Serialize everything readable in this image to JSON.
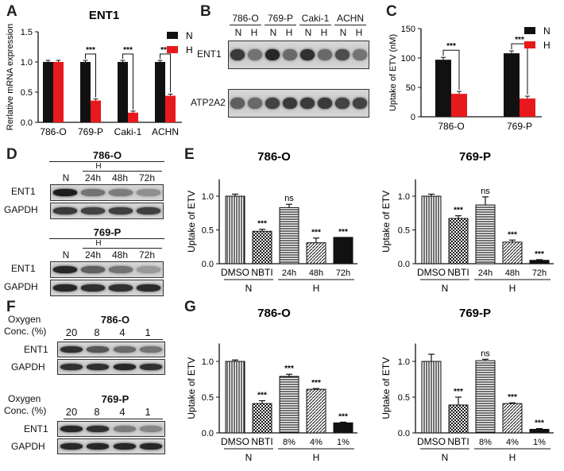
{
  "labels": {
    "A": "A",
    "B": "B",
    "C": "C",
    "D": "D",
    "E": "E",
    "F": "F",
    "G": "G"
  },
  "colors": {
    "black": "#111111",
    "red": "#e8191c"
  },
  "panelA": {
    "chart_data": {
      "type": "bar",
      "title": "ENT1",
      "ylabel": "Rerlative mRNA expression",
      "ylim": [
        0,
        1.5
      ],
      "yticks": [
        "0.0",
        "0.5",
        "1.0",
        "1.5"
      ],
      "categories": [
        "786-O",
        "769-P",
        "Caki-1",
        "ACHN"
      ],
      "series": [
        {
          "name": "N",
          "color": "#111111",
          "values": [
            1.0,
            1.0,
            1.0,
            1.0
          ]
        },
        {
          "name": "H",
          "color": "#e8191c",
          "values": [
            1.0,
            0.36,
            0.16,
            0.44
          ]
        }
      ],
      "sig": [
        "",
        "***",
        "***",
        "***"
      ]
    }
  },
  "panelC": {
    "chart_data": {
      "type": "bar",
      "ylabel": "Uptake of ETV (nM)",
      "ylim": [
        0,
        150
      ],
      "yticks": [
        "0",
        "50",
        "100",
        "150"
      ],
      "categories": [
        "786-O",
        "769-P"
      ],
      "series": [
        {
          "name": "N",
          "color": "#111111",
          "values": [
            97,
            108
          ]
        },
        {
          "name": "H",
          "color": "#e8191c",
          "values": [
            39,
            31
          ]
        }
      ],
      "sig": [
        "***",
        "***"
      ]
    }
  },
  "panelB": {
    "cells": [
      "786-O",
      "769-P",
      "Caki-1",
      "ACHN"
    ],
    "conds": [
      "N",
      "H",
      "N",
      "H",
      "N",
      "H",
      "N",
      "H"
    ],
    "row1": "ENT1",
    "row2": "ATP2A2",
    "ent1": [
      0.75,
      0.45,
      0.85,
      0.5,
      0.8,
      0.5,
      0.65,
      0.45
    ],
    "atp": [
      0.55,
      0.5,
      0.7,
      0.75,
      0.75,
      0.75,
      0.7,
      0.7
    ]
  },
  "panelD": {
    "blocks": [
      {
        "cell": "786-O",
        "n": "N",
        "h": "H",
        "times": [
          "24h",
          "48h",
          "72h"
        ],
        "row1": "ENT1",
        "row2": "GAPDH",
        "ent1": [
          0.9,
          0.45,
          0.4,
          0.3
        ],
        "gapdh": [
          0.75,
          0.7,
          0.72,
          0.72
        ]
      },
      {
        "cell": "769-P",
        "n": "N",
        "h": "H",
        "times": [
          "24h",
          "48h",
          "72h"
        ],
        "row1": "ENT1",
        "row2": "GAPDH",
        "ent1": [
          0.85,
          0.55,
          0.45,
          0.25
        ],
        "gapdh": [
          0.85,
          0.8,
          0.8,
          0.82
        ]
      }
    ]
  },
  "panelE": [
    {
      "chart_data": {
        "type": "bar",
        "title": "786-O",
        "ylabel": "Uptake of ETV",
        "ylim": [
          0,
          1.25
        ],
        "yticks": [
          "0.0",
          "0.5",
          "1.0"
        ],
        "categories": [
          "DMSO",
          "NBTI",
          "24h",
          "48h",
          "72h"
        ],
        "values": [
          1.0,
          0.48,
          0.83,
          0.31,
          0.39
        ],
        "errors": [
          0.03,
          0.03,
          0.05,
          0.07,
          0
        ],
        "patterns": [
          "vline",
          "check",
          "hline",
          "hatch",
          "solid"
        ],
        "sig": [
          "",
          "***",
          "ns",
          "***",
          "***"
        ],
        "groups": [
          {
            "label": "N",
            "from": 0,
            "to": 1
          },
          {
            "label": "H",
            "from": 2,
            "to": 4
          }
        ]
      }
    },
    {
      "chart_data": {
        "type": "bar",
        "title": "769-P",
        "ylabel": "Uptake of ETV",
        "ylim": [
          0,
          1.25
        ],
        "yticks": [
          "0.0",
          "0.5",
          "1.0"
        ],
        "categories": [
          "DMSO",
          "NBTI",
          "24h",
          "48h",
          "72h"
        ],
        "values": [
          1.0,
          0.67,
          0.87,
          0.32,
          0.05
        ],
        "errors": [
          0.03,
          0.04,
          0.12,
          0.03,
          0.01
        ],
        "patterns": [
          "vline",
          "check",
          "hline",
          "hatch",
          "solid"
        ],
        "sig": [
          "",
          "***",
          "ns",
          "***",
          "***"
        ],
        "groups": [
          {
            "label": "N",
            "from": 0,
            "to": 1
          },
          {
            "label": "H",
            "from": 2,
            "to": 4
          }
        ]
      }
    }
  ],
  "panelF": {
    "blocks": [
      {
        "cell": "786-O",
        "oxygen_label_1": "Oxygen",
        "oxygen_label_2": "Conc. (%)",
        "levels": [
          "20",
          "8",
          "4",
          "1"
        ],
        "row1": "ENT1",
        "row2": "GAPDH",
        "ent1": [
          0.8,
          0.6,
          0.5,
          0.45
        ],
        "gapdh": [
          0.8,
          0.8,
          0.85,
          0.8
        ]
      },
      {
        "cell": "769-P",
        "oxygen_label_1": "Oxygen",
        "oxygen_label_2": "Conc. (%)",
        "levels": [
          "20",
          "8",
          "4",
          "1"
        ],
        "row1": "ENT1",
        "row2": "GAPDH",
        "ent1": [
          0.85,
          0.8,
          0.4,
          0.35
        ],
        "gapdh": [
          0.85,
          0.85,
          0.85,
          0.85
        ]
      }
    ]
  },
  "panelG": [
    {
      "chart_data": {
        "type": "bar",
        "title": "786-O",
        "ylabel": "Uptake of ETV",
        "ylim": [
          0,
          1.25
        ],
        "yticks": [
          "0.0",
          "0.5",
          "1.0"
        ],
        "categories": [
          "DMSO",
          "NBTI",
          "8%",
          "4%",
          "1%"
        ],
        "values": [
          1.0,
          0.41,
          0.79,
          0.61,
          0.14
        ],
        "errors": [
          0.02,
          0.04,
          0.03,
          0.01,
          0.01
        ],
        "patterns": [
          "vline",
          "check",
          "hline",
          "hatch",
          "solid"
        ],
        "sig": [
          "",
          "***",
          "***",
          "***",
          "***"
        ],
        "groups": [
          {
            "label": "N",
            "from": 0,
            "to": 1
          },
          {
            "label": "H",
            "from": 2,
            "to": 4
          }
        ]
      }
    },
    {
      "chart_data": {
        "type": "bar",
        "title": "769-P",
        "ylabel": "Uptake of ETV",
        "ylim": [
          0,
          1.25
        ],
        "yticks": [
          "0.0",
          "0.5",
          "1.0"
        ],
        "categories": [
          "DMSO",
          "NBTI",
          "8%",
          "4%",
          "1%"
        ],
        "values": [
          1.0,
          0.39,
          1.01,
          0.41,
          0.05
        ],
        "errors": [
          0.1,
          0.11,
          0.02,
          0.01,
          0.01
        ],
        "patterns": [
          "vline",
          "check",
          "hline",
          "hatch",
          "solid"
        ],
        "sig": [
          "",
          "***",
          "ns",
          "***",
          "***"
        ],
        "groups": [
          {
            "label": "N",
            "from": 0,
            "to": 1
          },
          {
            "label": "H",
            "from": 2,
            "to": 4
          }
        ]
      }
    }
  ]
}
